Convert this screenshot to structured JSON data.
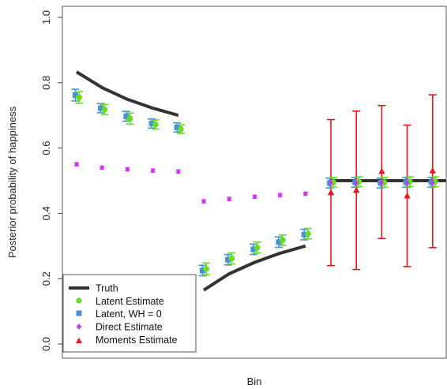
{
  "chart_data": {
    "type": "scatter",
    "title": "",
    "xlabel": "Bin",
    "ylabel": "Posterior probability of happiness",
    "ylim": [
      0,
      1
    ],
    "xlim": [
      0.5,
      17.5
    ],
    "yticks": [
      "0.0",
      "0.2",
      "0.4",
      "0.6",
      "0.8",
      "1.0"
    ],
    "yticks_values": [
      0,
      0.2,
      0.4,
      0.6,
      0.8,
      1.0
    ],
    "legend": {
      "position": "bottom-left",
      "entries": [
        "Truth",
        "Latent Estimate",
        "Latent, WH = 0",
        "Direct Estimate",
        "Moments Estimate"
      ]
    },
    "colors": {
      "truth": "#333333",
      "latent": "#66dd22",
      "latent_wh0": "#4a90d9",
      "direct": "#cc33ff",
      "moments": "#e8161b"
    },
    "truth_segments": [
      {
        "x": [
          1,
          2,
          3,
          4,
          5
        ],
        "y": [
          0.833,
          0.785,
          0.749,
          0.722,
          0.7
        ]
      },
      {
        "x": [
          6,
          7,
          8,
          9,
          10
        ],
        "y": [
          0.165,
          0.215,
          0.25,
          0.278,
          0.3
        ]
      },
      {
        "x": [
          11,
          12,
          13,
          14,
          15,
          16,
          17
        ],
        "y": [
          0.5,
          0.5,
          0.5,
          0.5,
          0.5,
          0.5,
          0.5
        ]
      }
    ],
    "series": [
      {
        "name": "Latent Estimate",
        "x": [
          1.1,
          2.1,
          3.1,
          4.1,
          5.1,
          6.1,
          7.1,
          8.1,
          9.1,
          10.1,
          11.1,
          12.1,
          13.1,
          14.1,
          15.1,
          16.1
        ],
        "y": [
          0.755,
          0.718,
          0.69,
          0.672,
          0.658,
          0.23,
          0.262,
          0.295,
          0.318,
          0.338,
          0.495,
          0.497,
          0.495,
          0.497,
          0.497,
          0.497
        ],
        "lo": [
          0.737,
          0.702,
          0.673,
          0.658,
          0.645,
          0.212,
          0.245,
          0.278,
          0.302,
          0.322,
          0.48,
          0.482,
          0.48,
          0.482,
          0.482,
          0.482
        ],
        "hi": [
          0.773,
          0.733,
          0.707,
          0.686,
          0.671,
          0.248,
          0.279,
          0.312,
          0.334,
          0.354,
          0.51,
          0.512,
          0.51,
          0.512,
          0.512,
          0.512
        ]
      },
      {
        "name": "Latent, WH = 0",
        "x": [
          0.95,
          1.95,
          2.95,
          3.95,
          4.95,
          5.95,
          6.95,
          7.95,
          8.95,
          9.95,
          10.95,
          11.95,
          12.95,
          13.95,
          14.95,
          15.95
        ],
        "y": [
          0.762,
          0.722,
          0.697,
          0.675,
          0.663,
          0.225,
          0.258,
          0.29,
          0.312,
          0.335,
          0.493,
          0.495,
          0.493,
          0.495,
          0.495,
          0.495
        ],
        "lo": [
          0.744,
          0.708,
          0.682,
          0.661,
          0.649,
          0.209,
          0.242,
          0.274,
          0.296,
          0.319,
          0.478,
          0.48,
          0.478,
          0.48,
          0.48,
          0.48
        ],
        "hi": [
          0.78,
          0.736,
          0.712,
          0.689,
          0.677,
          0.241,
          0.274,
          0.306,
          0.328,
          0.351,
          0.508,
          0.51,
          0.508,
          0.51,
          0.51,
          0.51
        ]
      },
      {
        "name": "Direct Estimate",
        "x": [
          1,
          2,
          3,
          4,
          5,
          6,
          7,
          8,
          9,
          10,
          11,
          12,
          13,
          14,
          15,
          16,
          17
        ],
        "y": [
          0.55,
          0.54,
          0.535,
          0.531,
          0.528,
          0.437,
          0.444,
          0.451,
          0.456,
          0.46,
          0.494,
          0.494,
          0.494,
          0.494,
          0.494,
          0.494,
          0.494
        ],
        "lo": [
          0.545,
          0.535,
          0.53,
          0.526,
          0.523,
          0.432,
          0.439,
          0.446,
          0.451,
          0.455,
          0.489,
          0.489,
          0.489,
          0.489,
          0.489,
          0.489,
          0.489
        ],
        "hi": [
          0.555,
          0.545,
          0.54,
          0.536,
          0.533,
          0.442,
          0.449,
          0.456,
          0.461,
          0.465,
          0.499,
          0.499,
          0.499,
          0.499,
          0.499,
          0.499,
          0.499
        ]
      },
      {
        "name": "Moments Estimate",
        "x": [
          11,
          12,
          13,
          14,
          15
        ],
        "y": [
          0.463,
          0.47,
          0.528,
          0.453,
          0.53
        ],
        "lo": [
          0.24,
          0.228,
          0.323,
          0.237,
          0.295
        ],
        "hi": [
          0.687,
          0.713,
          0.73,
          0.67,
          0.763
        ]
      }
    ]
  }
}
